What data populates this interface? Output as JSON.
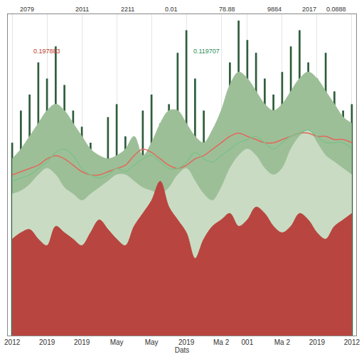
{
  "chart_data": {
    "type": "line",
    "x_label": "Dats",
    "categories": [
      "2012",
      null,
      null,
      null,
      "2019",
      null,
      null,
      null,
      "2019",
      null,
      null,
      null,
      "May",
      null,
      null,
      null,
      "May",
      null,
      null,
      null,
      "2019",
      null,
      null,
      null,
      "Ma 2",
      null,
      null,
      "001",
      null,
      null,
      null,
      "Ma 2",
      null,
      null,
      null,
      "2019",
      null,
      null,
      null,
      "2012"
    ],
    "series": [
      {
        "type": "area",
        "color": "#9dbf98",
        "values": [
          55,
          58,
          62,
          66,
          70,
          72,
          70,
          66,
          62,
          58,
          56,
          55,
          56,
          58,
          62,
          56,
          60,
          66,
          70,
          70,
          66,
          62,
          60,
          64,
          70,
          78,
          82,
          80,
          76,
          72,
          70,
          72,
          76,
          80,
          82,
          80,
          76,
          72,
          68,
          66
        ]
      },
      {
        "type": "area",
        "color": "#c9dcc3",
        "values": [
          44,
          45,
          47,
          50,
          52,
          50,
          46,
          44,
          42,
          44,
          46,
          48,
          50,
          50,
          48,
          46,
          45,
          44,
          46,
          50,
          52,
          48,
          44,
          42,
          46,
          52,
          56,
          58,
          56,
          52,
          50,
          52,
          58,
          62,
          64,
          60,
          56,
          54,
          52,
          50
        ]
      },
      {
        "type": "bar",
        "color": "#2f5d3b",
        "values": [
          60,
          70,
          75,
          85,
          80,
          90,
          78,
          70,
          65,
          60,
          55,
          68,
          72,
          62,
          58,
          70,
          75,
          66,
          72,
          88,
          95,
          80,
          70,
          62,
          58,
          85,
          98,
          92,
          88,
          80,
          75,
          82,
          90,
          95,
          85,
          80,
          88,
          76,
          70,
          72
        ]
      },
      {
        "type": "area",
        "color": "#b8453f",
        "values": [
          30,
          32,
          33,
          30,
          28,
          34,
          32,
          30,
          28,
          32,
          36,
          33,
          30,
          28,
          34,
          38,
          42,
          48,
          40,
          36,
          32,
          24,
          30,
          34,
          36,
          38,
          34,
          36,
          40,
          38,
          34,
          32,
          34,
          38,
          36,
          32,
          30,
          34,
          36,
          38
        ]
      },
      {
        "type": "line",
        "color": "#e06a5a",
        "values": [
          50,
          51,
          52,
          53,
          55,
          56,
          55,
          53,
          51,
          50,
          50,
          51,
          52,
          53,
          56,
          58,
          57,
          55,
          53,
          52,
          53,
          55,
          56,
          58,
          60,
          62,
          63,
          62,
          61,
          60,
          60,
          61,
          62,
          63,
          63,
          62,
          62,
          61,
          61,
          60
        ]
      },
      {
        "type": "line",
        "color": "#7fc08a",
        "values": [
          48,
          49,
          50,
          52,
          54,
          57,
          58,
          56,
          52,
          50,
          49,
          50,
          52,
          51,
          53,
          55,
          56,
          54,
          52,
          52,
          54,
          57,
          55,
          54,
          56,
          58,
          60,
          61,
          62,
          60,
          58,
          60,
          62,
          63,
          64,
          62,
          60,
          60,
          60,
          58
        ]
      }
    ],
    "ylim": [
      0,
      100
    ],
    "yticks": [],
    "tick_labels": "x",
    "grid": true,
    "annotations": [
      {
        "text": "2079"
      },
      {
        "text": "2011"
      },
      {
        "text": "2211"
      },
      {
        "text": "0.01"
      },
      {
        "text": "78.88"
      },
      {
        "text": "9884"
      },
      {
        "text": "2017"
      },
      {
        "text": "0.0888"
      },
      {
        "text": "0.197883",
        "color": "#c0392b"
      },
      {
        "text": "0.119707",
        "color": "#2e8b57"
      }
    ]
  }
}
